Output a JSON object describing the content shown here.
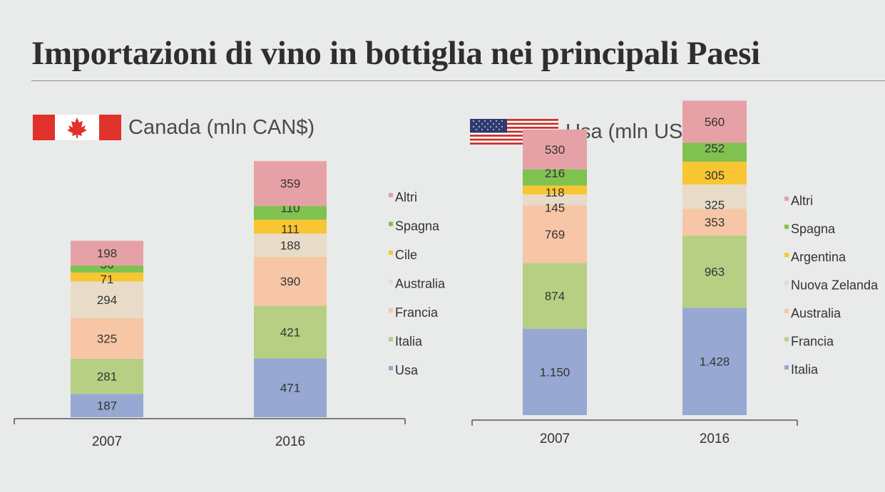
{
  "title": "Importazioni di vino in bottiglia nei principali Paesi",
  "chart_data": [
    {
      "type": "bar",
      "stacked": true,
      "title": "Canada (mln CAN$)",
      "categories": [
        "2007",
        "2016"
      ],
      "legend_position": "right",
      "colors": {
        "Usa": "#97a9d2",
        "Italia": "#b6cf82",
        "Francia": "#f7c6a6",
        "Australia": "#e8dcc8",
        "Cile": "#f8c632",
        "Spagna": "#7fc24f",
        "Altri": "#e6a1a7"
      },
      "series": [
        {
          "name": "Usa",
          "values": [
            187,
            471
          ],
          "labels": [
            "187",
            "471"
          ]
        },
        {
          "name": "Italia",
          "values": [
            281,
            421
          ],
          "labels": [
            "281",
            "421"
          ]
        },
        {
          "name": "Francia",
          "values": [
            325,
            390
          ],
          "labels": [
            "325",
            "390"
          ]
        },
        {
          "name": "Australia",
          "values": [
            294,
            188
          ],
          "labels": [
            "294",
            "188"
          ]
        },
        {
          "name": "Cile",
          "values": [
            71,
            111
          ],
          "labels": [
            "71",
            "111"
          ]
        },
        {
          "name": "Spagna",
          "values": [
            56,
            110
          ],
          "labels": [
            "56",
            "110"
          ]
        },
        {
          "name": "Altri",
          "values": [
            198,
            359
          ],
          "labels": [
            "198",
            "359"
          ]
        }
      ]
    },
    {
      "type": "bar",
      "stacked": true,
      "title": "Usa (mln US$)",
      "categories": [
        "2007",
        "2016"
      ],
      "legend_position": "right",
      "colors": {
        "Italia": "#97a9d2",
        "Francia": "#b6cf82",
        "Australia": "#f7c6a6",
        "Nuova Zelanda": "#e8dcc8",
        "Argentina": "#f8c632",
        "Spagna": "#7fc24f",
        "Altri": "#e6a1a7"
      },
      "series": [
        {
          "name": "Italia",
          "values": [
            1150,
            1428
          ],
          "labels": [
            "1.150",
            "1.428"
          ]
        },
        {
          "name": "Francia",
          "values": [
            874,
            963
          ],
          "labels": [
            "874",
            "963"
          ]
        },
        {
          "name": "Australia",
          "values": [
            769,
            353
          ],
          "labels": [
            "769",
            "353"
          ]
        },
        {
          "name": "Nuova Zelanda",
          "values": [
            145,
            325
          ],
          "labels": [
            "145",
            "325"
          ]
        },
        {
          "name": "Argentina",
          "values": [
            118,
            305
          ],
          "labels": [
            "118",
            "305"
          ]
        },
        {
          "name": "Spagna",
          "values": [
            216,
            252
          ],
          "labels": [
            "216",
            "252"
          ]
        },
        {
          "name": "Altri",
          "values": [
            530,
            560
          ],
          "labels": [
            "530",
            "560"
          ]
        }
      ]
    }
  ]
}
